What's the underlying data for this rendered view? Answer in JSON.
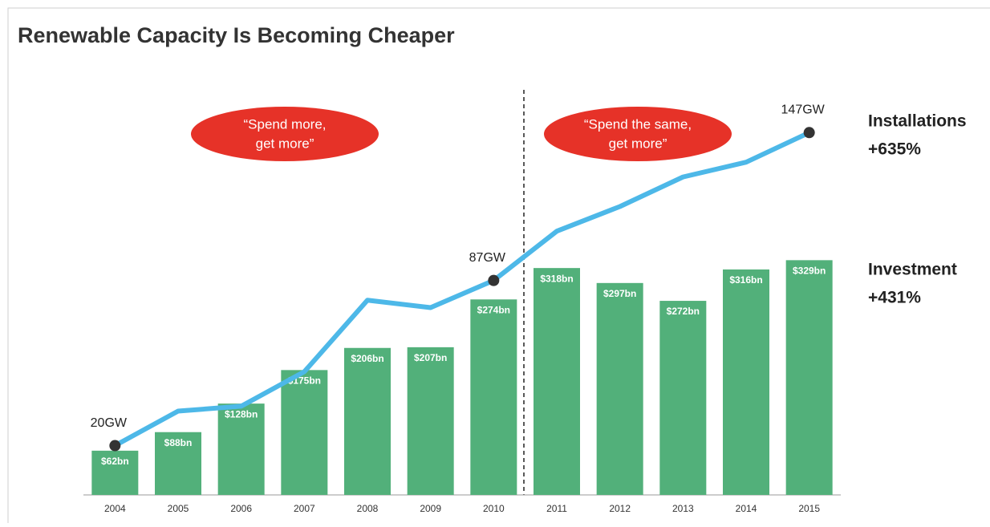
{
  "chart_data": {
    "type": "bar",
    "title": "Renewable Capacity Is Becoming Cheaper",
    "categories": [
      "2004",
      "2005",
      "2006",
      "2007",
      "2008",
      "2009",
      "2010",
      "2011",
      "2012",
      "2013",
      "2014",
      "2015"
    ],
    "series": [
      {
        "name": "Investment",
        "type": "bar",
        "color": "#52b07a",
        "values": [
          62,
          88,
          128,
          175,
          206,
          207,
          274,
          318,
          297,
          272,
          316,
          329
        ],
        "value_labels": [
          "$62bn",
          "$88bn",
          "$128bn",
          "$175bn",
          "$206bn",
          "$207bn",
          "$274bn",
          "$318bn",
          "$297bn",
          "$272bn",
          "$316bn",
          "$329bn"
        ]
      },
      {
        "name": "Installations",
        "type": "line",
        "axis": "y2",
        "color": "#4db8e8",
        "values": [
          20,
          34,
          36,
          50,
          79,
          76,
          87,
          107,
          117,
          129,
          135,
          147
        ],
        "value_labels": [
          "20GW",
          null,
          null,
          null,
          null,
          null,
          "87GW",
          null,
          null,
          null,
          null,
          "147GW"
        ]
      }
    ],
    "ylim": [
      0,
      570
    ],
    "y2lim": [
      0,
      165
    ],
    "annotations": [
      {
        "lines": [
          "“Spend more,",
          "get more”"
        ]
      },
      {
        "lines": [
          "“Spend the same,",
          "get more”"
        ]
      }
    ],
    "side_labels": [
      {
        "lines": [
          "Installations",
          "+635%"
        ]
      },
      {
        "lines": [
          "Investment",
          "+431%"
        ]
      }
    ]
  }
}
